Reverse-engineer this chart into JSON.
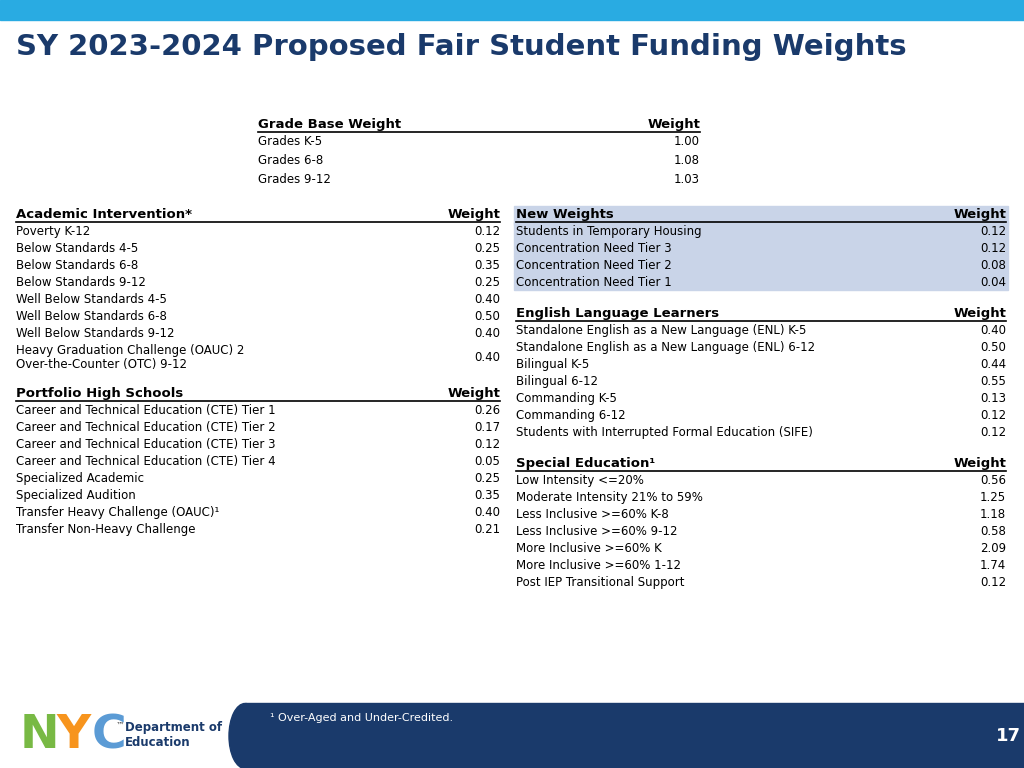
{
  "title": "SY 2023-2024 Proposed Fair Student Funding Weights",
  "title_color": "#1a3a6b",
  "header_bar_color": "#29abe2",
  "footer_bar_color": "#1a3a6b",
  "bg_color": "#ffffff",
  "page_number": "17",
  "footnote": "¹ Over-Aged and Under-Credited.",
  "grade_base": {
    "header": [
      "Grade Base Weight",
      "Weight"
    ],
    "rows": [
      [
        "Grades K-5",
        "1.00"
      ],
      [
        "Grades 6-8",
        "1.08"
      ],
      [
        "Grades 9-12",
        "1.03"
      ]
    ]
  },
  "academic_intervention": {
    "header": [
      "Academic Intervention*",
      "Weight"
    ],
    "rows": [
      [
        "Poverty K-12",
        "0.12"
      ],
      [
        "Below Standards 4-5",
        "0.25"
      ],
      [
        "Below Standards 6-8",
        "0.35"
      ],
      [
        "Below Standards 9-12",
        "0.25"
      ],
      [
        "Well Below Standards 4-5",
        "0.40"
      ],
      [
        "Well Below Standards 6-8",
        "0.50"
      ],
      [
        "Well Below Standards 9-12",
        "0.40"
      ],
      [
        "Heavy Graduation Challenge (OAUC) 2\nOver-the-Counter (OTC) 9-12",
        "0.40"
      ]
    ]
  },
  "portfolio_high_schools": {
    "header": [
      "Portfolio High Schools",
      "Weight"
    ],
    "rows": [
      [
        "Career and Technical Education (CTE) Tier 1",
        "0.26"
      ],
      [
        "Career and Technical Education (CTE) Tier 2",
        "0.17"
      ],
      [
        "Career and Technical Education (CTE) Tier 3",
        "0.12"
      ],
      [
        "Career and Technical Education (CTE) Tier 4",
        "0.05"
      ],
      [
        "Specialized Academic",
        "0.25"
      ],
      [
        "Specialized Audition",
        "0.35"
      ],
      [
        "Transfer Heavy Challenge (OAUC)¹",
        "0.40"
      ],
      [
        "Transfer Non-Heavy Challenge",
        "0.21"
      ]
    ]
  },
  "new_weights": {
    "header": [
      "New Weights",
      "Weight"
    ],
    "rows": [
      [
        "Students in Temporary Housing",
        "0.12"
      ],
      [
        "Concentration Need Tier 3",
        "0.12"
      ],
      [
        "Concentration Need Tier 2",
        "0.08"
      ],
      [
        "Concentration Need Tier 1",
        "0.04"
      ]
    ],
    "shade_color": "#c9d4e8"
  },
  "english_language_learners": {
    "header": [
      "English Language Learners",
      "Weight"
    ],
    "rows": [
      [
        "Standalone English as a New Language (ENL) K-5",
        "0.40"
      ],
      [
        "Standalone English as a New Language (ENL) 6-12",
        "0.50"
      ],
      [
        "Bilingual K-5",
        "0.44"
      ],
      [
        "Bilingual 6-12",
        "0.55"
      ],
      [
        "Commanding K-5",
        "0.13"
      ],
      [
        "Commanding 6-12",
        "0.12"
      ],
      [
        "Students with Interrupted Formal Education (SIFE)",
        "0.12"
      ]
    ]
  },
  "special_education": {
    "header": [
      "Special Education¹",
      "Weight"
    ],
    "rows": [
      [
        "Low Intensity <=20%",
        "0.56"
      ],
      [
        "Moderate Intensity 21% to 59%",
        "1.25"
      ],
      [
        "Less Inclusive >=60% K-8",
        "1.18"
      ],
      [
        "Less Inclusive >=60% 9-12",
        "0.58"
      ],
      [
        "More Inclusive >=60% K",
        "2.09"
      ],
      [
        "More Inclusive >=60% 1-12",
        "1.74"
      ],
      [
        "Post IEP Transitional Support",
        "0.12"
      ]
    ]
  },
  "nyc_logo_colors": {
    "N": "#78b944",
    "Y": "#f7941d",
    "C": "#5b9bd5"
  }
}
